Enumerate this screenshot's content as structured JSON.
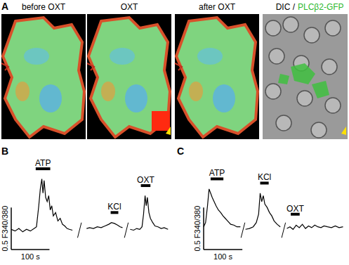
{
  "panel_A": {
    "label": "A",
    "images": [
      "before OXT",
      "OXT",
      "after OXT"
    ],
    "dic_label": "DIC /",
    "gfp_label": "PLCβ2-GFP"
  },
  "chart_data": [
    {
      "type": "line",
      "title": "B",
      "tick_labels": false,
      "color": "#000000",
      "xlim": [
        0,
        415
      ],
      "ylim": [
        -0.22,
        1.0
      ],
      "scale_bar": {
        "x": 100,
        "x_label": "100 s",
        "y": 0.5,
        "y_label": "0.5 F340/380"
      },
      "segments": [
        {
          "stimulus": "ATP",
          "stimulus_start": 64,
          "stimulus_end": 102,
          "x": [
            0,
            10,
            20,
            30,
            40,
            50,
            60,
            66,
            72,
            76,
            80,
            83,
            86,
            90,
            94,
            98,
            102,
            106,
            110,
            116,
            122,
            128,
            134,
            140,
            146,
            152,
            160
          ],
          "values": [
            0.02,
            0.0,
            0.03,
            -0.01,
            0.02,
            0.0,
            0.03,
            0.05,
            0.3,
            0.5,
            0.62,
            0.45,
            0.6,
            0.4,
            0.35,
            0.42,
            0.25,
            0.3,
            0.18,
            0.22,
            0.12,
            0.15,
            0.08,
            0.06,
            0.03,
            0.02,
            0.01
          ]
        },
        {
          "stimulus": "KCl",
          "stimulus_start": 260,
          "stimulus_end": 280,
          "x": [
            197,
            205,
            215,
            225,
            235,
            245,
            255,
            262,
            270,
            278,
            285,
            291
          ],
          "values": [
            0.03,
            0.04,
            0.03,
            0.05,
            0.04,
            0.06,
            0.08,
            0.1,
            0.09,
            0.07,
            0.05,
            0.04
          ]
        },
        {
          "stimulus": "OXT",
          "stimulus_start": 339,
          "stimulus_end": 364,
          "x": [
            311,
            320,
            328,
            336,
            342,
            346,
            350,
            353,
            356,
            360,
            364,
            370,
            376,
            384,
            392,
            400,
            410
          ],
          "values": [
            0.02,
            0.01,
            0.03,
            0.02,
            0.05,
            0.2,
            0.42,
            0.3,
            0.4,
            0.22,
            0.15,
            0.1,
            0.06,
            0.05,
            0.03,
            0.04,
            0.02
          ]
        }
      ]
    },
    {
      "type": "line",
      "title": "C",
      "tick_labels": false,
      "color": "#000000",
      "xlim": [
        0,
        370
      ],
      "ylim": [
        -0.22,
        1.0
      ],
      "scale_bar": {
        "x": 100,
        "x_label": "100 s",
        "y": 0.5,
        "y_label": "0.5 F340/380"
      },
      "segments": [
        {
          "stimulus": "ATP",
          "stimulus_start": 18,
          "stimulus_end": 51,
          "x": [
            0,
            5,
            10,
            14,
            18,
            22,
            27,
            32,
            38,
            44,
            50,
            56,
            62,
            70,
            78,
            86,
            95
          ],
          "values": [
            0.05,
            0.1,
            0.3,
            0.5,
            0.45,
            0.4,
            0.35,
            0.3,
            0.25,
            0.22,
            0.18,
            0.15,
            0.12,
            0.08,
            0.07,
            0.05,
            0.05
          ]
        },
        {
          "stimulus": "KCl",
          "stimulus_start": 146,
          "stimulus_end": 168,
          "x": [
            108,
            118,
            128,
            136,
            142,
            146,
            150,
            154,
            158,
            164,
            170,
            176,
            182,
            190,
            198
          ],
          "values": [
            0.02,
            0.03,
            0.05,
            0.1,
            0.2,
            0.45,
            0.35,
            0.42,
            0.32,
            0.28,
            0.22,
            0.18,
            0.12,
            0.08,
            0.05
          ]
        },
        {
          "stimulus": "OXT",
          "stimulus_start": 225,
          "stimulus_end": 248,
          "x": [
            215,
            223,
            231,
            239,
            247,
            255,
            263,
            271,
            279,
            287,
            295,
            303,
            311,
            320,
            330,
            340,
            350,
            360
          ],
          "values": [
            0.03,
            0.05,
            0.02,
            0.07,
            0.04,
            0.08,
            0.03,
            0.06,
            0.04,
            0.07,
            0.05,
            0.04,
            0.06,
            0.05,
            0.04,
            0.06,
            0.04,
            0.05
          ]
        }
      ]
    }
  ]
}
